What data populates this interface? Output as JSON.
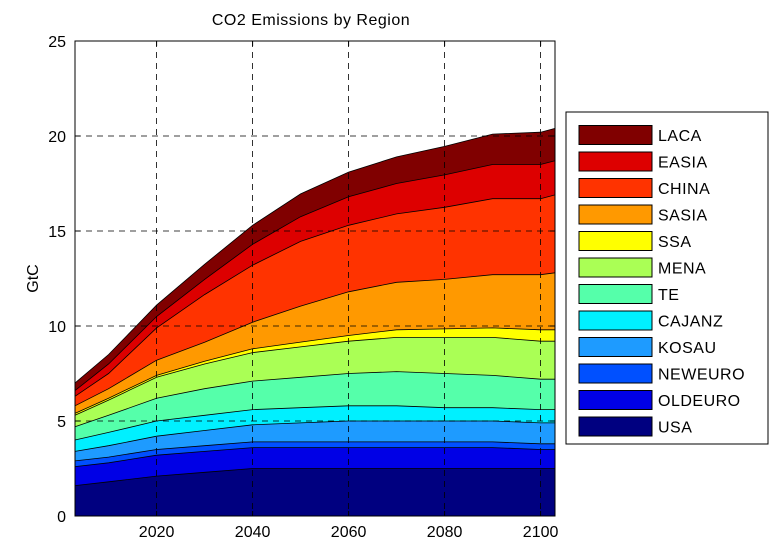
{
  "chart_data": {
    "type": "area",
    "stacked": true,
    "title": "CO2 Emissions by Region",
    "xlabel": "",
    "ylabel": "GtC",
    "xlim": [
      2003,
      2103
    ],
    "ylim": [
      0,
      25
    ],
    "xticks": [
      2020,
      2040,
      2060,
      2080,
      2100
    ],
    "yticks": [
      0,
      5,
      10,
      15,
      20,
      25
    ],
    "grid": true,
    "legend_position": "right",
    "x": [
      2003,
      2010,
      2020,
      2030,
      2040,
      2050,
      2060,
      2070,
      2080,
      2090,
      2100,
      2103
    ],
    "series": [
      {
        "name": "USA",
        "color": "#000080",
        "values": [
          1.6,
          1.8,
          2.1,
          2.3,
          2.5,
          2.5,
          2.5,
          2.5,
          2.5,
          2.5,
          2.5,
          2.5
        ]
      },
      {
        "name": "OLDEURO",
        "color": "#0000E6",
        "values": [
          1.0,
          1.0,
          1.1,
          1.1,
          1.1,
          1.1,
          1.1,
          1.1,
          1.1,
          1.1,
          1.0,
          1.0
        ]
      },
      {
        "name": "NEWEURO",
        "color": "#0050FF",
        "values": [
          0.3,
          0.3,
          0.3,
          0.3,
          0.3,
          0.3,
          0.3,
          0.3,
          0.3,
          0.3,
          0.3,
          0.3
        ]
      },
      {
        "name": "KOSAU",
        "color": "#1E9BFF",
        "values": [
          0.5,
          0.6,
          0.7,
          0.8,
          0.9,
          1.0,
          1.1,
          1.1,
          1.1,
          1.1,
          1.1,
          1.1
        ]
      },
      {
        "name": "CAJANZ",
        "color": "#00F0FF",
        "values": [
          0.6,
          0.7,
          0.8,
          0.8,
          0.8,
          0.8,
          0.8,
          0.8,
          0.7,
          0.7,
          0.7,
          0.7
        ]
      },
      {
        "name": "TE",
        "color": "#55FFAA",
        "values": [
          0.7,
          0.9,
          1.2,
          1.4,
          1.5,
          1.6,
          1.7,
          1.8,
          1.8,
          1.7,
          1.6,
          1.6
        ]
      },
      {
        "name": "MENA",
        "color": "#AAFF55",
        "values": [
          0.6,
          0.8,
          1.1,
          1.3,
          1.5,
          1.6,
          1.7,
          1.8,
          1.9,
          2.0,
          2.0,
          2.0
        ]
      },
      {
        "name": "SSA",
        "color": "#FFFF00",
        "values": [
          0.1,
          0.1,
          0.1,
          0.15,
          0.2,
          0.25,
          0.3,
          0.4,
          0.45,
          0.5,
          0.6,
          0.6
        ]
      },
      {
        "name": "SASIA",
        "color": "#FF9900",
        "values": [
          0.4,
          0.5,
          0.8,
          1.0,
          1.4,
          1.9,
          2.3,
          2.5,
          2.6,
          2.8,
          2.9,
          3.0
        ]
      },
      {
        "name": "CHINA",
        "color": "#FF3300",
        "values": [
          0.5,
          0.8,
          1.7,
          2.5,
          3.0,
          3.4,
          3.5,
          3.6,
          3.8,
          4.0,
          4.0,
          4.1
        ]
      },
      {
        "name": "EASIA",
        "color": "#DD0000",
        "values": [
          0.3,
          0.5,
          0.6,
          0.8,
          1.1,
          1.3,
          1.5,
          1.6,
          1.7,
          1.8,
          1.8,
          1.8
        ]
      },
      {
        "name": "LACA",
        "color": "#800000",
        "values": [
          0.4,
          0.5,
          0.6,
          0.8,
          1.0,
          1.2,
          1.3,
          1.4,
          1.5,
          1.6,
          1.7,
          1.7
        ]
      }
    ]
  }
}
